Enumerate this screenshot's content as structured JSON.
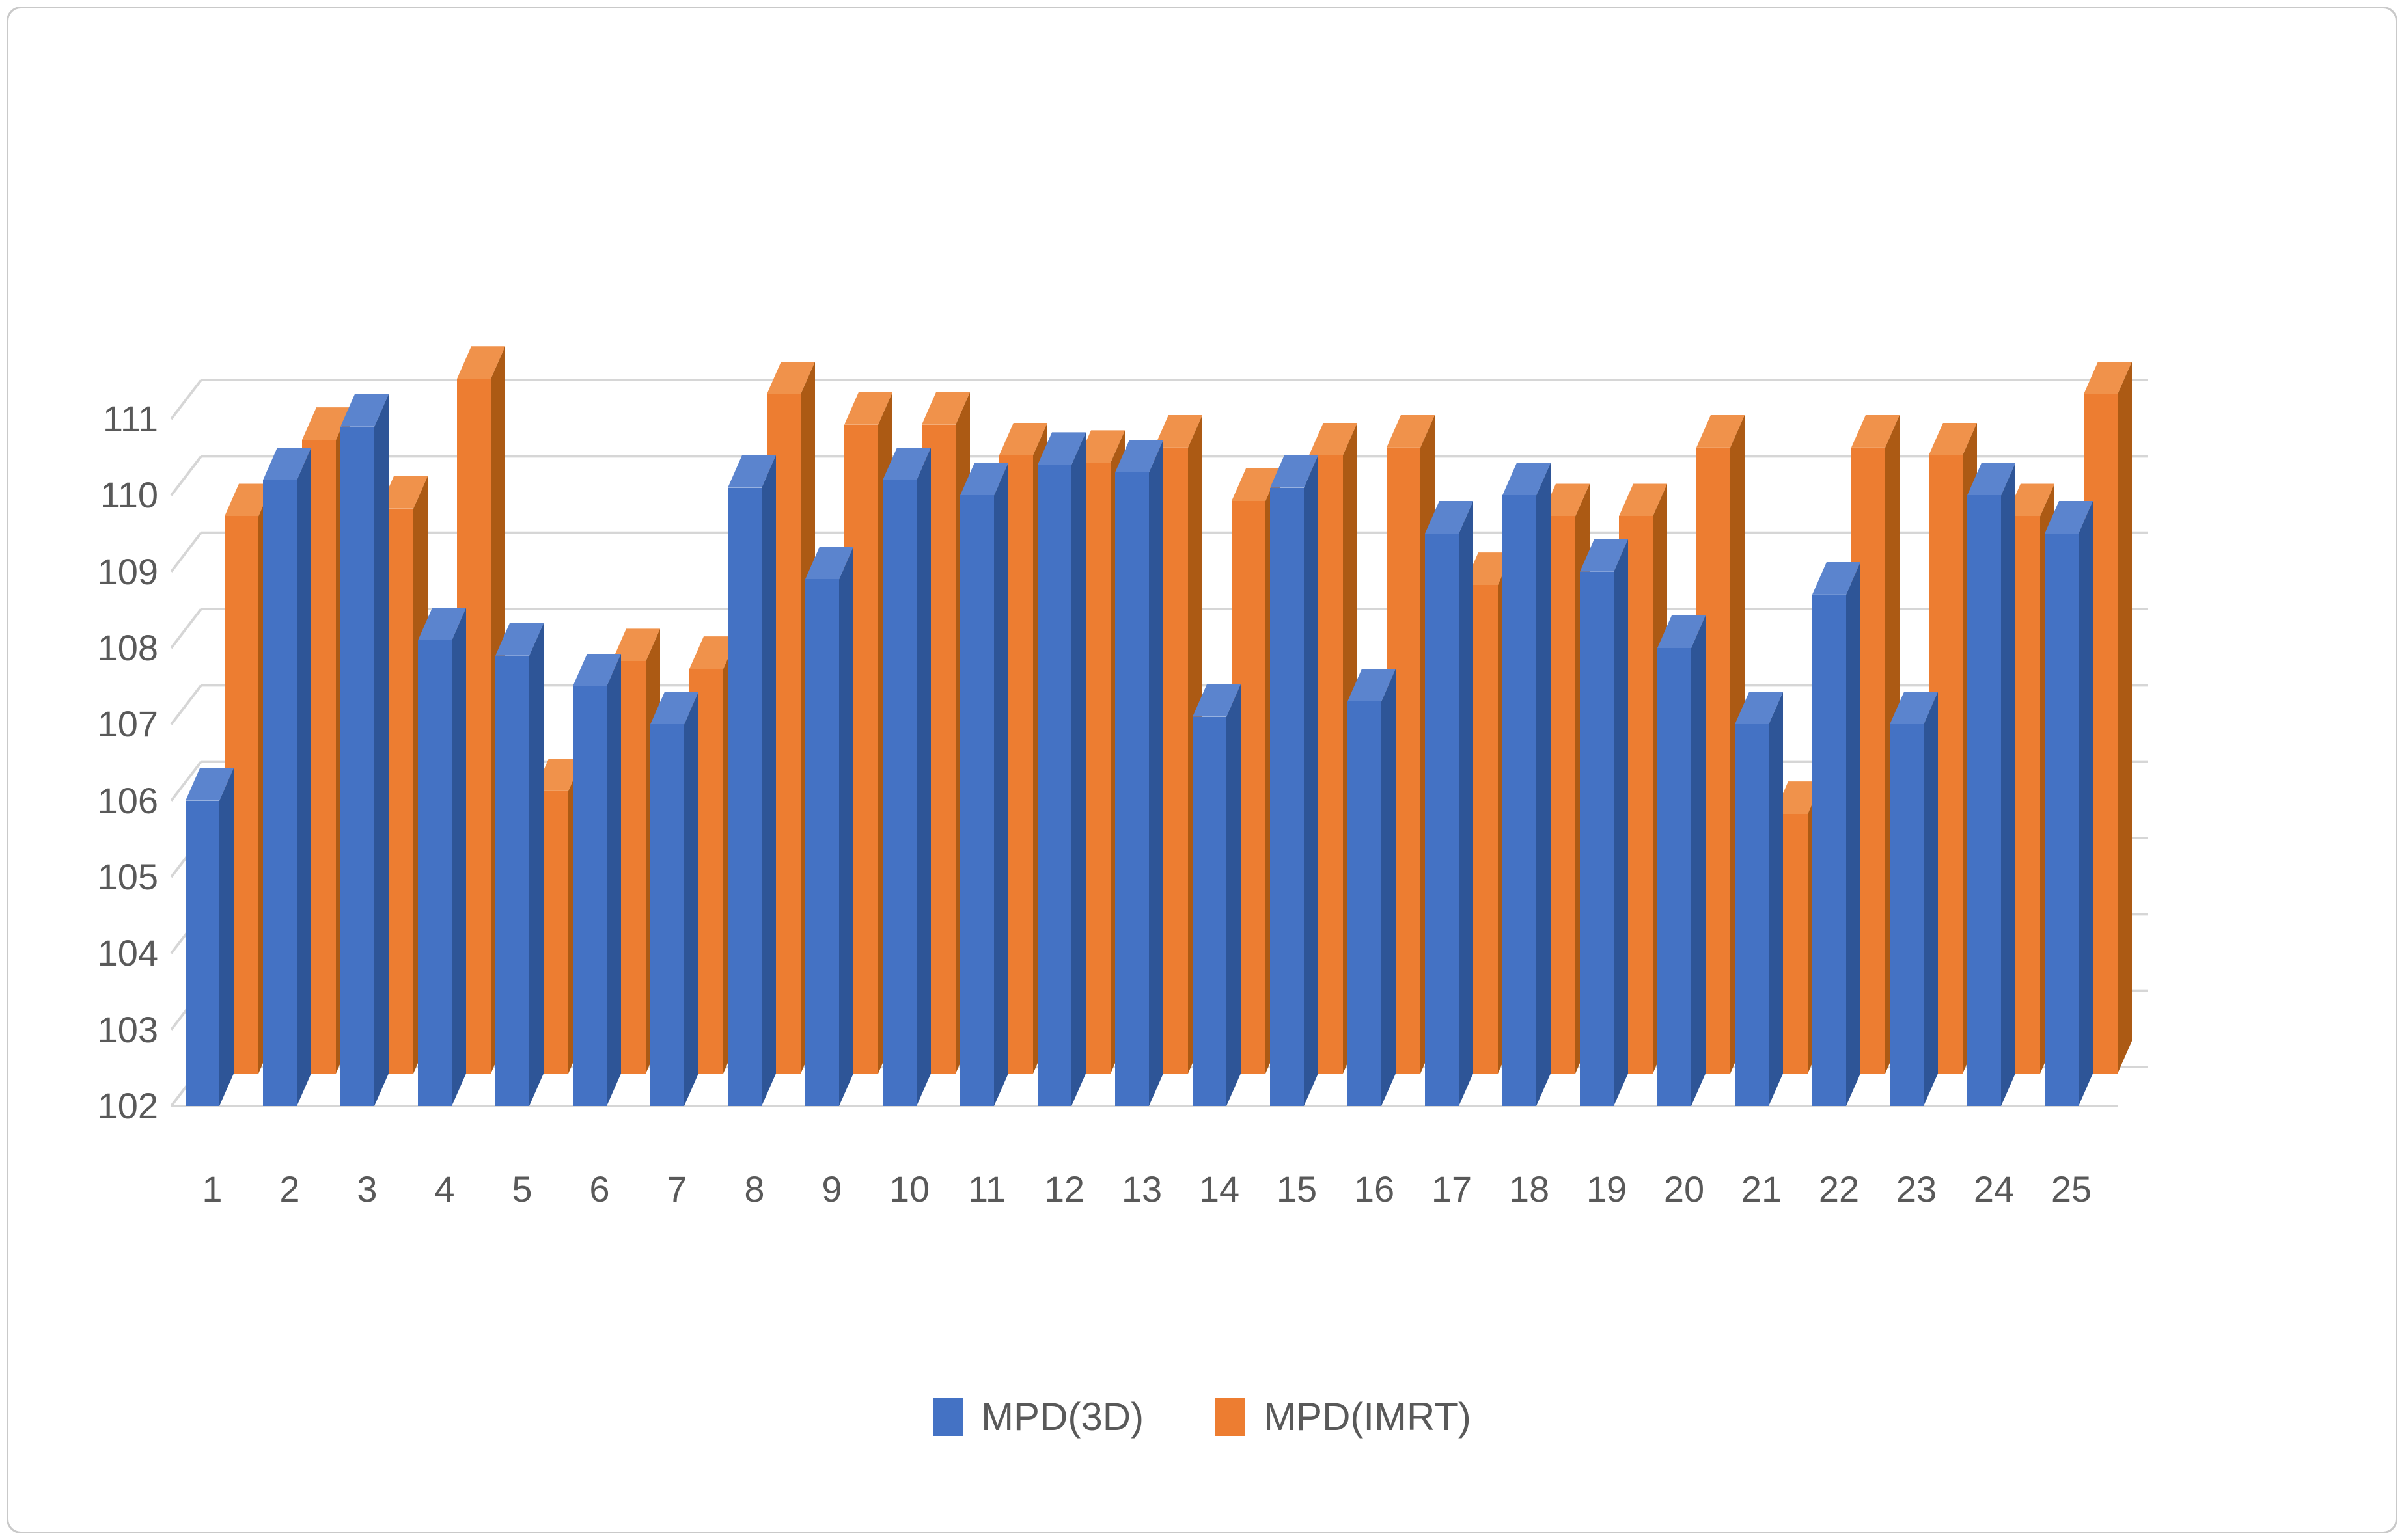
{
  "chart_data": {
    "type": "bar",
    "variant": "3d-clustered-column",
    "title": "",
    "xlabel": "",
    "ylabel": "",
    "categories": [
      "1",
      "2",
      "3",
      "4",
      "5",
      "6",
      "7",
      "8",
      "9",
      "10",
      "11",
      "12",
      "13",
      "14",
      "15",
      "16",
      "17",
      "18",
      "19",
      "20",
      "21",
      "22",
      "23",
      "24",
      "25"
    ],
    "series": [
      {
        "name": "MPD(3D)",
        "color": "#4472C4",
        "values": [
          106.0,
          110.2,
          110.9,
          108.1,
          107.9,
          107.5,
          107.0,
          110.1,
          108.9,
          110.2,
          110.0,
          110.4,
          110.3,
          107.1,
          110.1,
          107.3,
          109.5,
          110.0,
          109.0,
          108.0,
          107.0,
          108.7,
          107.0,
          110.0,
          109.5
        ]
      },
      {
        "name": "MPD(IMRT)",
        "color": "#ED7D31",
        "values": [
          109.3,
          110.3,
          109.4,
          111.1,
          105.7,
          107.4,
          107.3,
          110.9,
          110.5,
          110.5,
          110.1,
          110.0,
          110.2,
          109.5,
          110.1,
          110.2,
          108.4,
          109.3,
          109.3,
          110.2,
          105.4,
          110.2,
          110.1,
          109.3,
          110.9
        ]
      }
    ],
    "ylim": [
      102,
      111
    ],
    "yticks": [
      102,
      103,
      104,
      105,
      106,
      107,
      108,
      109,
      110,
      111
    ],
    "grid": true,
    "legend_position": "bottom"
  },
  "colors": {
    "blue_front": "#4472C4",
    "blue_top": "#5B84CE",
    "blue_side": "#2E5597",
    "orange_front": "#ED7D31",
    "orange_top": "#F0924B",
    "orange_side": "#AC5A14",
    "gridline": "#D6D6D6",
    "axis_text": "#595959",
    "frame_border": "#C9C9C9",
    "background": "#FFFFFF"
  }
}
